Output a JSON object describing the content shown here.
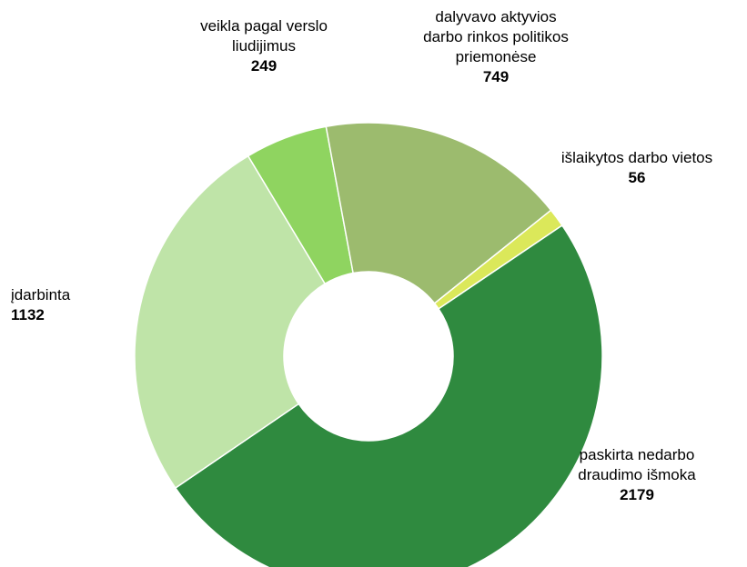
{
  "chart_data": {
    "type": "donut",
    "categories": [
      "veikla pagal verslo liudijimus",
      "dalyvavo aktyvios darbo rinkos politikos priemonėse",
      "išlaikytos darbo vietos",
      "paskirta nedarbo draudimo išmoka",
      "įdarbinta"
    ],
    "values": [
      249,
      749,
      56,
      2179,
      1132
    ],
    "colors": [
      "#8fd460",
      "#9cbb6e",
      "#dbe85a",
      "#2f8a3f",
      "#bfe4a8"
    ]
  }
}
